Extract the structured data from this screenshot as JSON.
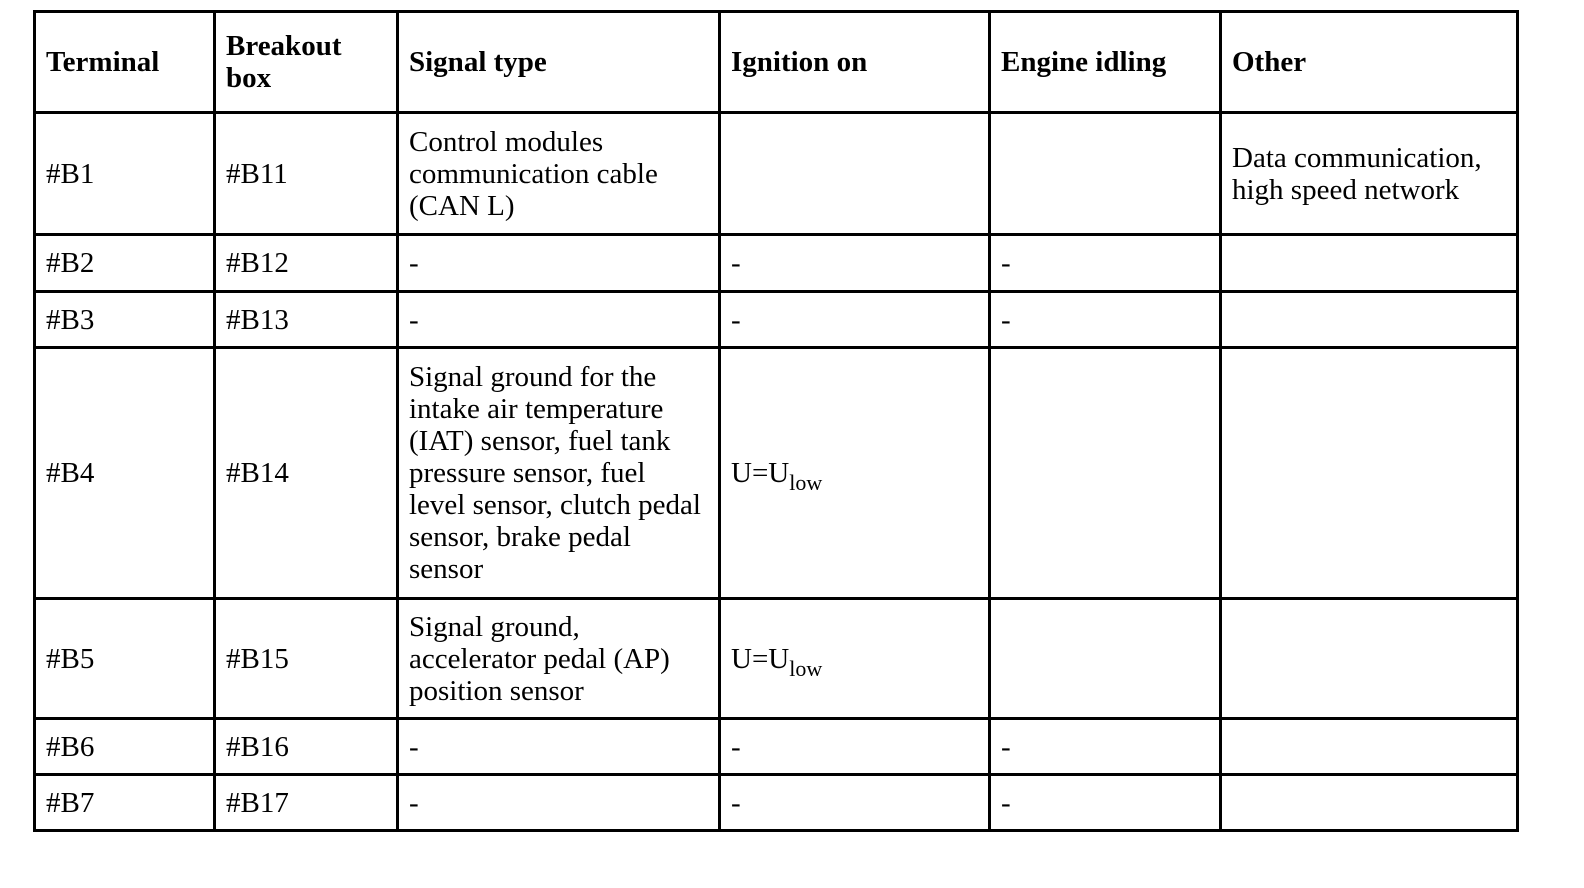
{
  "headers": [
    "Terminal",
    "Breakout box",
    "Signal type",
    "Ignition on",
    "Engine idling",
    "Other"
  ],
  "rows": [
    {
      "terminal": "#B1",
      "breakout": "#B11",
      "signal": "Control modules communication cable (CAN L)",
      "ignition_main": "",
      "ignition_sub": "",
      "idling": "",
      "other": "Data communication, high speed network"
    },
    {
      "terminal": "#B2",
      "breakout": "#B12",
      "signal": "-",
      "ignition_main": "-",
      "ignition_sub": "",
      "idling": "-",
      "other": ""
    },
    {
      "terminal": "#B3",
      "breakout": "#B13",
      "signal": "-",
      "ignition_main": "-",
      "ignition_sub": "",
      "idling": "-",
      "other": ""
    },
    {
      "terminal": "#B4",
      "breakout": "#B14",
      "signal": "Signal ground for the intake air temperature (IAT) sensor, fuel tank pressure sensor, fuel level sensor, clutch pedal sensor, brake pedal sensor",
      "ignition_main": "U=U",
      "ignition_sub": "low",
      "idling": "",
      "other": ""
    },
    {
      "terminal": "#B5",
      "breakout": "#B15",
      "signal": "Signal ground, accelerator pedal (AP) position sensor",
      "ignition_main": "U=U",
      "ignition_sub": "low",
      "idling": "",
      "other": ""
    },
    {
      "terminal": "#B6",
      "breakout": "#B16",
      "signal": "-",
      "ignition_main": "-",
      "ignition_sub": "",
      "idling": "-",
      "other": ""
    },
    {
      "terminal": "#B7",
      "breakout": "#B17",
      "signal": "-",
      "ignition_main": "-",
      "ignition_sub": "",
      "idling": "-",
      "other": ""
    }
  ]
}
